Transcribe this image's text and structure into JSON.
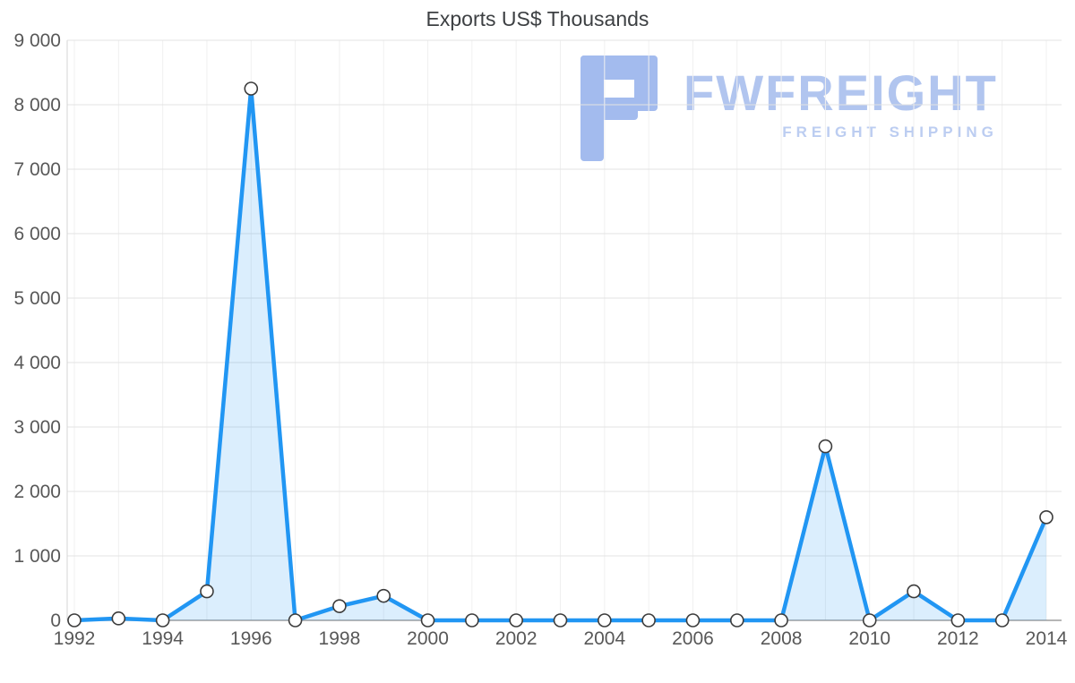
{
  "watermark": {
    "brand": "FWFREIGHT",
    "tagline": "FREIGHT SHIPPING",
    "logo_color": "#a3bbee",
    "brand_color": "#b1c5ef"
  },
  "chart_data": {
    "type": "area",
    "title": "Exports US$ Thousands",
    "x": [
      1992,
      1993,
      1994,
      1995,
      1996,
      1997,
      1998,
      1999,
      2000,
      2001,
      2002,
      2003,
      2004,
      2005,
      2006,
      2007,
      2008,
      2009,
      2010,
      2011,
      2012,
      2013,
      2014
    ],
    "values": [
      0,
      30,
      0,
      450,
      8250,
      0,
      220,
      380,
      0,
      0,
      0,
      0,
      0,
      0,
      0,
      0,
      0,
      2700,
      0,
      450,
      0,
      0,
      1600
    ],
    "xlabel": "",
    "ylabel": "",
    "ylim": [
      0,
      9000
    ],
    "ytick_step": 1000,
    "ytick_labels": [
      "0",
      "1 000",
      "2 000",
      "3 000",
      "4 000",
      "5 000",
      "6 000",
      "7 000",
      "8 000",
      "9 000"
    ],
    "xtick_labels": [
      "1992",
      "1994",
      "1996",
      "1998",
      "2000",
      "2002",
      "2004",
      "2006",
      "2008",
      "2010",
      "2012",
      "2014"
    ],
    "xtick_years": [
      1992,
      1994,
      1996,
      1998,
      2000,
      2002,
      2004,
      2006,
      2008,
      2010,
      2012,
      2014
    ],
    "grid": true,
    "legend_position": "none",
    "line_color": "#2196f3",
    "area_fill": "rgba(33,150,243,0.16)",
    "marker_fill": "#ffffff",
    "marker_stroke": "#3c3c3c",
    "grid_color": "#e3e3e3",
    "vgrid_color": "#f0f0f0",
    "axis_color": "#9e9e9e",
    "tick_label_color": "#585858"
  }
}
